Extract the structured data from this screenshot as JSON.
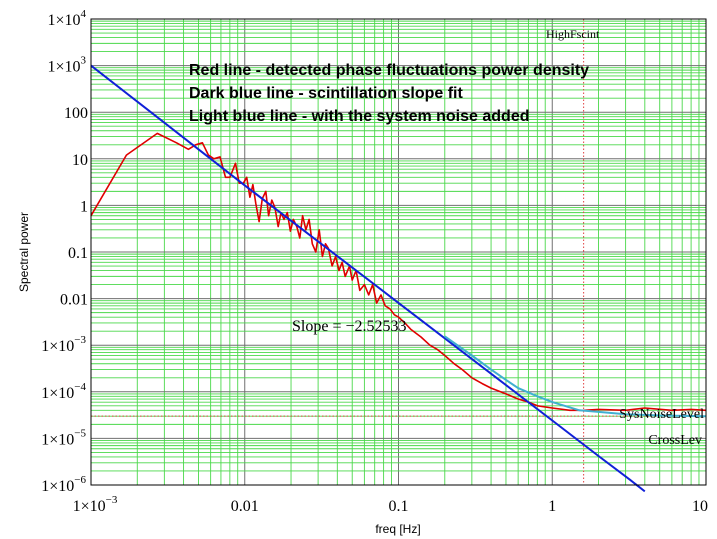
{
  "chart_data": {
    "type": "line",
    "title": "",
    "xlabel": "freq [Hz]",
    "ylabel": "Spectral power",
    "xscale": "log",
    "yscale": "log",
    "xlim": [
      0.001,
      10
    ],
    "ylim": [
      1e-06,
      10000
    ],
    "grid": true,
    "x_tick_labels": [
      {
        "value": 0.001,
        "label": "1×10",
        "exp": "−3"
      },
      {
        "value": 0.01,
        "label": "0.01",
        "exp": ""
      },
      {
        "value": 0.1,
        "label": "0.1",
        "exp": ""
      },
      {
        "value": 1,
        "label": "1",
        "exp": ""
      },
      {
        "value": 10,
        "label": "10",
        "exp": ""
      }
    ],
    "y_tick_labels": [
      {
        "value": 10000,
        "label": "1×10",
        "exp": "4"
      },
      {
        "value": 1000,
        "label": "1×10",
        "exp": "3"
      },
      {
        "value": 100,
        "label": "100",
        "exp": ""
      },
      {
        "value": 10,
        "label": "10",
        "exp": ""
      },
      {
        "value": 1,
        "label": "1",
        "exp": ""
      },
      {
        "value": 0.1,
        "label": "0.1",
        "exp": ""
      },
      {
        "value": 0.01,
        "label": "0.01",
        "exp": ""
      },
      {
        "value": 0.001,
        "label": "1×10",
        "exp": "−3"
      },
      {
        "value": 0.0001,
        "label": "1×10",
        "exp": "−4"
      },
      {
        "value": 1e-05,
        "label": "1×10",
        "exp": "−5"
      },
      {
        "value": 1e-06,
        "label": "1×10",
        "exp": "−6"
      }
    ],
    "legend_text": [
      "Red line - detected phase fluctuations power density",
      "Dark blue line - scintillation slope fit",
      "Light blue line - with the system noise added"
    ],
    "annotations": {
      "slope": "Slope = −2.52533",
      "high_fscint": "HighFscint",
      "sys_noise_level": "SysNoiseLevel",
      "cross_lev": "CrossLev"
    },
    "reference_lines": {
      "high_fscint_x": 1.6,
      "sys_noise_level_y": 3e-05
    },
    "series": [
      {
        "color": "#e00000",
        "values": [
          [
            0.001,
            0.6
          ],
          [
            0.0017,
            12
          ],
          [
            0.0027,
            35
          ],
          [
            0.0036,
            22
          ],
          [
            0.0043,
            16
          ],
          [
            0.0048,
            20
          ],
          [
            0.0053,
            22
          ],
          [
            0.0058,
            12
          ],
          [
            0.0063,
            10
          ],
          [
            0.0069,
            11
          ],
          [
            0.0075,
            4
          ],
          [
            0.008,
            4
          ],
          [
            0.0087,
            8
          ],
          [
            0.0092,
            3
          ],
          [
            0.0098,
            3
          ],
          [
            0.0103,
            4
          ],
          [
            0.0108,
            1.5
          ],
          [
            0.0113,
            2.8
          ],
          [
            0.0118,
            1.1
          ],
          [
            0.0124,
            0.45
          ],
          [
            0.013,
            1.4
          ],
          [
            0.0137,
            2.0
          ],
          [
            0.0143,
            0.6
          ],
          [
            0.015,
            1.3
          ],
          [
            0.0157,
            0.9
          ],
          [
            0.0165,
            0.35
          ],
          [
            0.0172,
            0.7
          ],
          [
            0.018,
            0.5
          ],
          [
            0.0189,
            0.7
          ],
          [
            0.0198,
            0.28
          ],
          [
            0.0207,
            0.5
          ],
          [
            0.0218,
            0.35
          ],
          [
            0.0228,
            0.2
          ],
          [
            0.0238,
            0.6
          ],
          [
            0.025,
            0.3
          ],
          [
            0.0262,
            0.5
          ],
          [
            0.0275,
            0.15
          ],
          [
            0.029,
            0.1
          ],
          [
            0.0305,
            0.3
          ],
          [
            0.032,
            0.08
          ],
          [
            0.0335,
            0.15
          ],
          [
            0.035,
            0.12
          ],
          [
            0.037,
            0.05
          ],
          [
            0.039,
            0.08
          ],
          [
            0.041,
            0.04
          ],
          [
            0.043,
            0.06
          ],
          [
            0.045,
            0.03
          ],
          [
            0.048,
            0.05
          ],
          [
            0.05,
            0.025
          ],
          [
            0.053,
            0.04
          ],
          [
            0.056,
            0.015
          ],
          [
            0.06,
            0.02
          ],
          [
            0.064,
            0.012
          ],
          [
            0.068,
            0.02
          ],
          [
            0.072,
            0.008
          ],
          [
            0.077,
            0.012
          ],
          [
            0.082,
            0.007
          ],
          [
            0.088,
            0.006
          ],
          [
            0.094,
            0.0045
          ],
          [
            0.1,
            0.004
          ],
          [
            0.11,
            0.003
          ],
          [
            0.12,
            0.0022
          ],
          [
            0.13,
            0.0018
          ],
          [
            0.14,
            0.0015
          ],
          [
            0.16,
            0.001
          ],
          [
            0.18,
            0.0008
          ],
          [
            0.2,
            0.0006
          ],
          [
            0.23,
            0.0004
          ],
          [
            0.26,
            0.0003
          ],
          [
            0.3,
            0.0002
          ],
          [
            0.35,
            0.00015
          ],
          [
            0.4,
            0.00012
          ],
          [
            0.5,
            9e-05
          ],
          [
            0.6,
            7e-05
          ],
          [
            0.7,
            6e-05
          ],
          [
            0.8,
            5e-05
          ],
          [
            1.0,
            4.5e-05
          ],
          [
            1.3,
            4e-05
          ],
          [
            1.6,
            4e-05
          ],
          [
            2.0,
            4.2e-05
          ],
          [
            3.0,
            4e-05
          ],
          [
            4.0,
            4.5e-05
          ],
          [
            6.0,
            4e-05
          ],
          [
            8.0,
            4.2e-05
          ],
          [
            10.0,
            4e-05
          ]
        ]
      },
      {
        "color": "#1020d8",
        "values": [
          [
            0.001,
            1000
          ],
          [
            0.00225,
            125
          ],
          [
            0.0045,
            21
          ],
          [
            0.01,
            2.69
          ],
          [
            0.1,
            0.0081
          ],
          [
            1,
            2.42e-05
          ],
          [
            2,
            4.2e-06
          ],
          [
            3.2,
            1.3e-06
          ],
          [
            4,
            7.3e-07
          ]
        ]
      },
      {
        "color": "#40b0d0",
        "values": [
          [
            0.2,
            0.00155
          ],
          [
            0.3,
            0.0006
          ],
          [
            0.4,
            0.0003
          ],
          [
            0.5,
            0.00018
          ],
          [
            0.6,
            0.00012
          ],
          [
            0.8,
            8e-05
          ],
          [
            1.0,
            6e-05
          ],
          [
            1.5,
            4e-05
          ],
          [
            2,
            3.7e-05
          ],
          [
            3,
            3.3e-05
          ],
          [
            5,
            3.1e-05
          ],
          [
            10,
            3e-05
          ]
        ]
      }
    ]
  }
}
